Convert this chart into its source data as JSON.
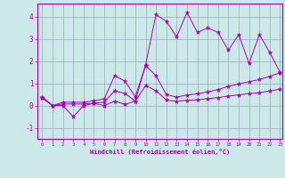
{
  "xlabel": "Windchill (Refroidissement éolien,°C)",
  "xlim": [
    -0.5,
    23.2
  ],
  "ylim": [
    -1.5,
    4.6
  ],
  "xticks": [
    0,
    1,
    2,
    3,
    4,
    5,
    6,
    7,
    8,
    9,
    10,
    11,
    12,
    13,
    14,
    15,
    16,
    17,
    18,
    19,
    20,
    21,
    22,
    23
  ],
  "yticks": [
    -1,
    0,
    1,
    2,
    3,
    4
  ],
  "bg_color": "#cce8e8",
  "line_color": "#aa00aa",
  "grid_color": "#99aabb",
  "line1_x": [
    0,
    1,
    2,
    3,
    4,
    5,
    6,
    7,
    8,
    9,
    10,
    11,
    12,
    13,
    14,
    15,
    16,
    17,
    18,
    19,
    20,
    21,
    22,
    23
  ],
  "line1_y": [
    0.4,
    0.0,
    0.0,
    -0.5,
    0.0,
    0.1,
    0.0,
    0.2,
    0.05,
    0.2,
    1.85,
    4.1,
    3.8,
    3.1,
    4.2,
    3.3,
    3.5,
    3.3,
    2.5,
    3.2,
    1.9,
    3.2,
    2.4,
    1.5
  ],
  "line2_x": [
    0,
    1,
    2,
    3,
    4,
    5,
    6,
    7,
    8,
    9,
    10,
    11,
    12,
    13,
    14,
    15,
    16,
    17,
    18,
    19,
    20,
    21,
    22,
    23
  ],
  "line2_y": [
    0.35,
    0.0,
    0.15,
    0.15,
    0.15,
    0.22,
    0.3,
    1.35,
    1.1,
    0.4,
    1.8,
    1.35,
    0.5,
    0.38,
    0.48,
    0.53,
    0.62,
    0.72,
    0.87,
    0.97,
    1.08,
    1.17,
    1.32,
    1.48
  ],
  "line3_x": [
    0,
    1,
    2,
    3,
    4,
    5,
    6,
    7,
    8,
    9,
    10,
    11,
    12,
    13,
    14,
    15,
    16,
    17,
    18,
    19,
    20,
    21,
    22,
    23
  ],
  "line3_y": [
    0.35,
    0.0,
    0.07,
    0.07,
    0.07,
    0.11,
    0.15,
    0.67,
    0.55,
    0.2,
    0.9,
    0.67,
    0.25,
    0.19,
    0.24,
    0.26,
    0.31,
    0.36,
    0.43,
    0.48,
    0.54,
    0.58,
    0.66,
    0.74
  ]
}
